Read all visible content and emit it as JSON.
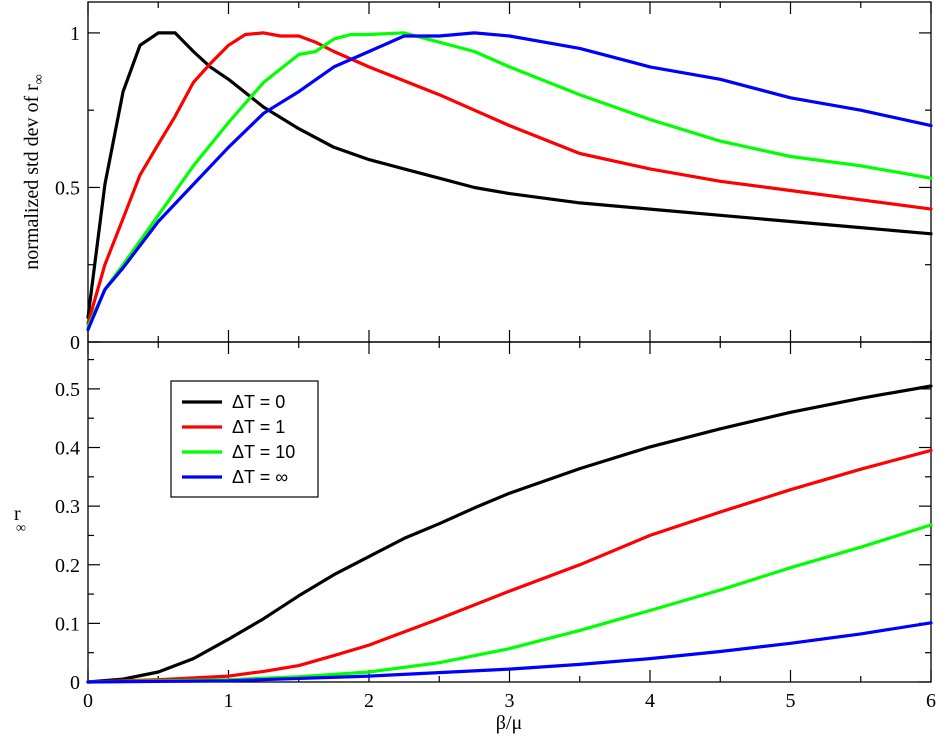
{
  "chart_data": [
    {
      "type": "line",
      "panel": "top",
      "ylabel": "normalized std dev of r",
      "ylabel_sub": "∞",
      "xlim": [
        0,
        6
      ],
      "ylim": [
        0,
        1.1
      ],
      "yticks": [
        0,
        0.5,
        1
      ],
      "ytick_labels": [
        "0",
        "0.5",
        "1"
      ],
      "series": [
        {
          "name": "ΔT = 0",
          "color": "#000000",
          "x": [
            0,
            0.12,
            0.25,
            0.37,
            0.5,
            0.62,
            0.75,
            0.87,
            1.0,
            1.25,
            1.5,
            1.75,
            2.0,
            2.25,
            2.5,
            2.75,
            3.0,
            3.5,
            4.0,
            4.5,
            5.0,
            5.5,
            6.0
          ],
          "y": [
            0.08,
            0.51,
            0.81,
            0.96,
            1.0,
            1.0,
            0.94,
            0.89,
            0.85,
            0.76,
            0.69,
            0.63,
            0.59,
            0.56,
            0.53,
            0.5,
            0.48,
            0.45,
            0.43,
            0.41,
            0.39,
            0.37,
            0.35
          ]
        },
        {
          "name": "ΔT = 1",
          "color": "#ff0000",
          "x": [
            0,
            0.12,
            0.25,
            0.37,
            0.5,
            0.62,
            0.75,
            0.87,
            1.0,
            1.12,
            1.25,
            1.37,
            1.5,
            1.62,
            1.75,
            2.0,
            2.5,
            3.0,
            3.5,
            4.0,
            4.5,
            5.0,
            5.5,
            6.0
          ],
          "y": [
            0.06,
            0.25,
            0.4,
            0.54,
            0.64,
            0.73,
            0.84,
            0.9,
            0.96,
            0.995,
            1.0,
            0.99,
            0.99,
            0.97,
            0.94,
            0.89,
            0.8,
            0.7,
            0.61,
            0.56,
            0.52,
            0.49,
            0.46,
            0.43
          ]
        },
        {
          "name": "ΔT = 10",
          "color": "#00ff00",
          "x": [
            0,
            0.12,
            0.25,
            0.5,
            0.75,
            1.0,
            1.25,
            1.5,
            1.62,
            1.75,
            1.87,
            2.0,
            2.25,
            2.5,
            2.75,
            3.0,
            3.5,
            4.0,
            4.5,
            5.0,
            5.5,
            6.0
          ],
          "y": [
            0.05,
            0.17,
            0.25,
            0.41,
            0.57,
            0.71,
            0.84,
            0.93,
            0.94,
            0.98,
            0.995,
            0.995,
            1.0,
            0.97,
            0.94,
            0.89,
            0.8,
            0.72,
            0.65,
            0.6,
            0.57,
            0.53
          ]
        },
        {
          "name": "ΔT = ∞",
          "color": "#0000ff",
          "x": [
            0,
            0.12,
            0.25,
            0.5,
            0.75,
            1.0,
            1.25,
            1.5,
            1.75,
            2.0,
            2.25,
            2.5,
            2.75,
            3.0,
            3.25,
            3.5,
            4.0,
            4.5,
            5.0,
            5.5,
            6.0
          ],
          "y": [
            0.04,
            0.17,
            0.24,
            0.39,
            0.51,
            0.63,
            0.74,
            0.81,
            0.89,
            0.94,
            0.99,
            0.99,
            1.0,
            0.99,
            0.97,
            0.95,
            0.89,
            0.85,
            0.79,
            0.75,
            0.7
          ]
        }
      ]
    },
    {
      "type": "line",
      "panel": "bottom",
      "xlabel": "β/μ",
      "ylabel": "r",
      "ylabel_sub": "∞",
      "xlim": [
        0,
        6
      ],
      "ylim": [
        0,
        0.58
      ],
      "xticks": [
        0,
        1,
        2,
        3,
        4,
        5,
        6
      ],
      "xtick_labels": [
        "0",
        "1",
        "2",
        "3",
        "4",
        "5",
        "6"
      ],
      "yticks": [
        0,
        0.1,
        0.2,
        0.3,
        0.4,
        0.5
      ],
      "ytick_labels": [
        "0",
        "0.1",
        "0.2",
        "0.3",
        "0.4",
        "0.5"
      ],
      "legend": "upper-left",
      "series": [
        {
          "name": "ΔT = 0",
          "color": "#000000",
          "x": [
            0,
            0.25,
            0.5,
            0.75,
            1.0,
            1.25,
            1.5,
            1.75,
            2.0,
            2.25,
            2.5,
            2.75,
            3.0,
            3.5,
            4.0,
            4.5,
            5.0,
            5.5,
            6.0
          ],
          "y": [
            0,
            0.005,
            0.017,
            0.04,
            0.073,
            0.108,
            0.147,
            0.183,
            0.214,
            0.245,
            0.27,
            0.297,
            0.322,
            0.364,
            0.401,
            0.432,
            0.46,
            0.484,
            0.505
          ]
        },
        {
          "name": "ΔT = 1",
          "color": "#ff0000",
          "x": [
            0,
            0.5,
            1.0,
            1.25,
            1.5,
            1.75,
            2.0,
            2.5,
            3.0,
            3.5,
            4.0,
            4.5,
            5.0,
            5.5,
            6.0
          ],
          "y": [
            0,
            0.004,
            0.01,
            0.018,
            0.028,
            0.045,
            0.063,
            0.108,
            0.155,
            0.2,
            0.25,
            0.29,
            0.328,
            0.363,
            0.395
          ]
        },
        {
          "name": "ΔT = 10",
          "color": "#00ff00",
          "x": [
            0,
            1.0,
            1.5,
            2.0,
            2.5,
            3.0,
            3.5,
            4.0,
            4.5,
            5.0,
            5.5,
            6.0
          ],
          "y": [
            0,
            0.004,
            0.009,
            0.017,
            0.033,
            0.057,
            0.088,
            0.122,
            0.157,
            0.195,
            0.23,
            0.268
          ]
        },
        {
          "name": "ΔT = ∞",
          "color": "#0000ff",
          "x": [
            0,
            1.0,
            2.0,
            3.0,
            3.5,
            4.0,
            4.5,
            5.0,
            5.5,
            6.0
          ],
          "y": [
            0,
            0.002,
            0.01,
            0.022,
            0.03,
            0.04,
            0.052,
            0.066,
            0.082,
            0.101
          ]
        }
      ]
    }
  ]
}
